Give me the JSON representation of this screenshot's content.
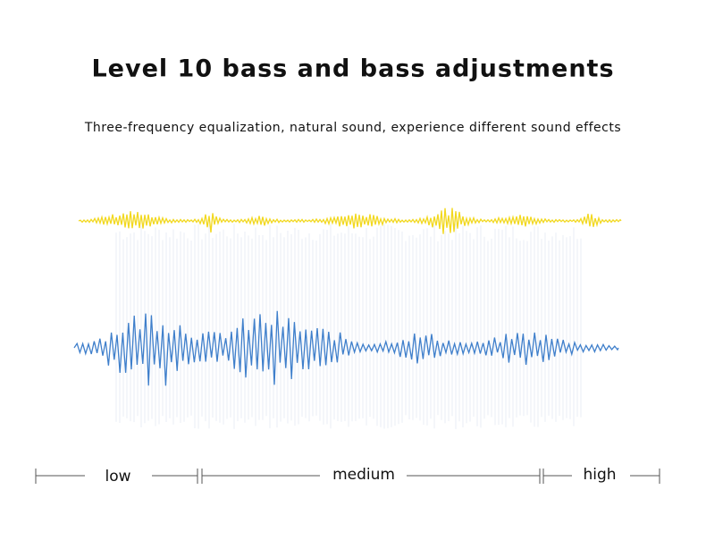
{
  "header": {
    "title": "Level 10 bass and bass adjustments",
    "subtitle": "Three-frequency equalization, natural sound, experience different sound effects"
  },
  "ranges": {
    "low": "low",
    "medium": "medium",
    "high": "high"
  }
}
